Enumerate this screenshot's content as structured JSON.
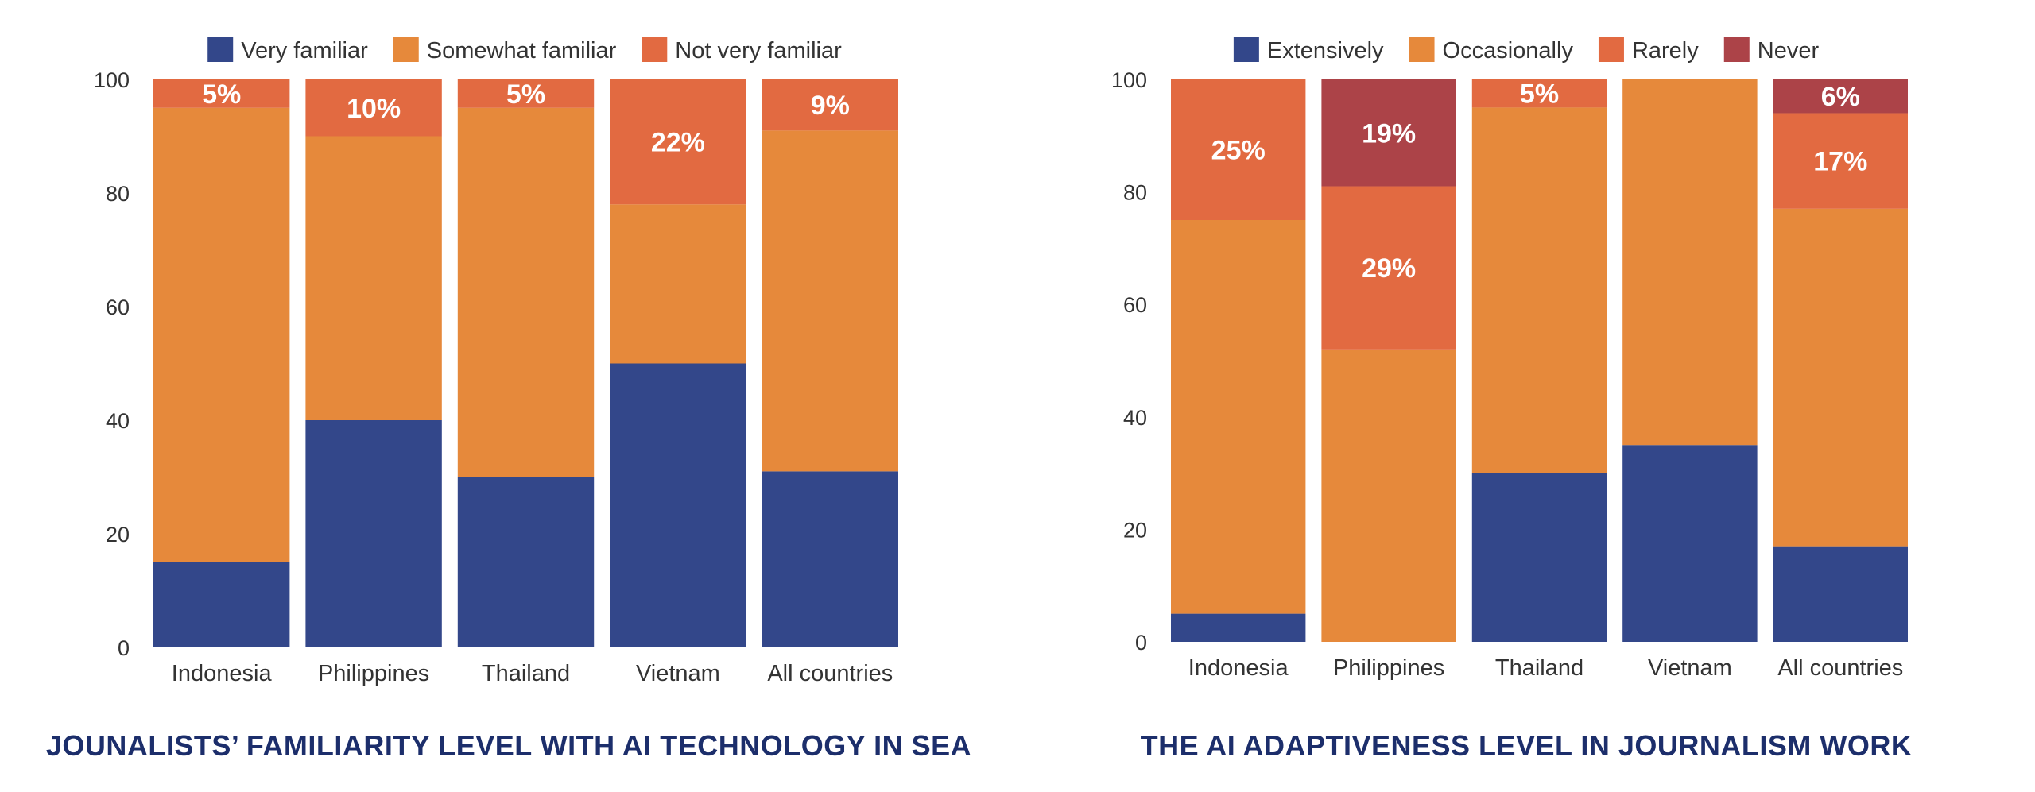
{
  "chart_data": [
    {
      "type": "bar",
      "stacked": true,
      "title": "JOUNALISTS’ FAMILIARITY LEVEL WITH AI TECHNOLOGY IN SEA",
      "categories": [
        "Indonesia",
        "Philippines",
        "Thailand",
        "Vietnam",
        "All countries"
      ],
      "series": [
        {
          "name": "Very familiar",
          "color": "#33478a",
          "values": [
            15,
            40,
            30,
            50,
            31
          ]
        },
        {
          "name": "Somewhat familiar",
          "color": "#e6893b",
          "values": [
            80,
            50,
            65,
            28,
            60
          ]
        },
        {
          "name": "Not very familiar",
          "color": "#e26a41",
          "values": [
            5,
            10,
            5,
            22,
            9
          ]
        }
      ],
      "data_labels": [
        {
          "category": "Indonesia",
          "series": "Not very familiar",
          "text": "5%"
        },
        {
          "category": "Philippines",
          "series": "Not very familiar",
          "text": "10%"
        },
        {
          "category": "Thailand",
          "series": "Not very familiar",
          "text": "5%"
        },
        {
          "category": "Vietnam",
          "series": "Not very familiar",
          "text": "22%"
        },
        {
          "category": "All countries",
          "series": "Not very familiar",
          "text": "9%"
        }
      ],
      "ylim": [
        0,
        100
      ],
      "yticks": [
        "0",
        "20",
        "40",
        "60",
        "80",
        "100"
      ],
      "legend_position": "top",
      "grid": false
    },
    {
      "type": "bar",
      "stacked": true,
      "title": "THE AI ADAPTIVENESS LEVEL IN JOURNALISM WORK",
      "categories": [
        "Indonesia",
        "Philippines",
        "Thailand",
        "Vietnam",
        "All countries"
      ],
      "series": [
        {
          "name": "Extensively",
          "color": "#33478a",
          "values": [
            5,
            0,
            30,
            35,
            17
          ]
        },
        {
          "name": "Occasionally",
          "color": "#e6893b",
          "values": [
            70,
            52,
            65,
            65,
            60
          ]
        },
        {
          "name": "Rarely",
          "color": "#e26a41",
          "values": [
            25,
            29,
            5,
            0,
            17
          ]
        },
        {
          "name": "Never",
          "color": "#ac4348",
          "values": [
            0,
            19,
            0,
            0,
            6
          ]
        }
      ],
      "data_labels": [
        {
          "category": "Indonesia",
          "series": "Rarely",
          "text": "25%"
        },
        {
          "category": "Philippines",
          "series": "Never",
          "text": "19%"
        },
        {
          "category": "Philippines",
          "series": "Rarely",
          "text": "29%"
        },
        {
          "category": "Thailand",
          "series": "Rarely",
          "text": "5%"
        },
        {
          "category": "All countries",
          "series": "Never",
          "text": "6%"
        },
        {
          "category": "All countries",
          "series": "Rarely",
          "text": "17%"
        }
      ],
      "ylim": [
        0,
        100
      ],
      "yticks": [
        "0",
        "20",
        "40",
        "60",
        "80",
        "100"
      ],
      "legend_position": "top",
      "grid": false
    }
  ]
}
